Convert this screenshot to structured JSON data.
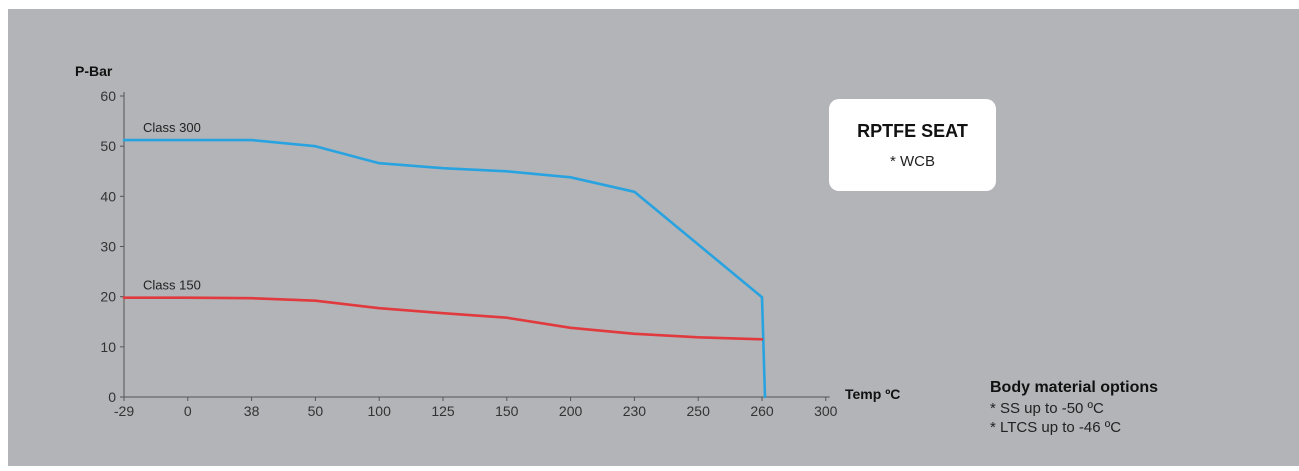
{
  "chart_data": {
    "type": "line",
    "xlabel": "Temp ºC",
    "ylabel": "P-Bar",
    "x_ticks": [
      "-29",
      "0",
      "38",
      "50",
      "100",
      "125",
      "150",
      "200",
      "230",
      "250",
      "260",
      "300"
    ],
    "y_ticks": [
      0,
      10,
      20,
      30,
      40,
      50,
      60
    ],
    "ylim": [
      0,
      60
    ],
    "x_scale": "categorical",
    "grid": false,
    "series": [
      {
        "name": "Class 300",
        "color": "#29a3e0",
        "x": [
          "-29",
          "0",
          "38",
          "50",
          "100",
          "125",
          "150",
          "200",
          "230",
          "260",
          "260"
        ],
        "y": [
          51.2,
          51.2,
          51.2,
          50.0,
          46.6,
          45.6,
          45.0,
          43.8,
          40.9,
          19.9,
          0
        ]
      },
      {
        "name": "Class 150",
        "color": "#e03a3e",
        "x": [
          "-29",
          "0",
          "38",
          "50",
          "100",
          "125",
          "150",
          "200",
          "230",
          "250",
          "260"
        ],
        "y": [
          19.8,
          19.8,
          19.7,
          19.2,
          17.7,
          16.7,
          15.8,
          13.8,
          12.6,
          11.9,
          11.5
        ]
      }
    ]
  },
  "seat_card": {
    "title": "RPTFE SEAT",
    "subtitle": "* WCB"
  },
  "body_material": {
    "title": "Body material options",
    "items": [
      "* SS up to -50 ºC",
      "* LTCS up to -46 ºC"
    ]
  }
}
